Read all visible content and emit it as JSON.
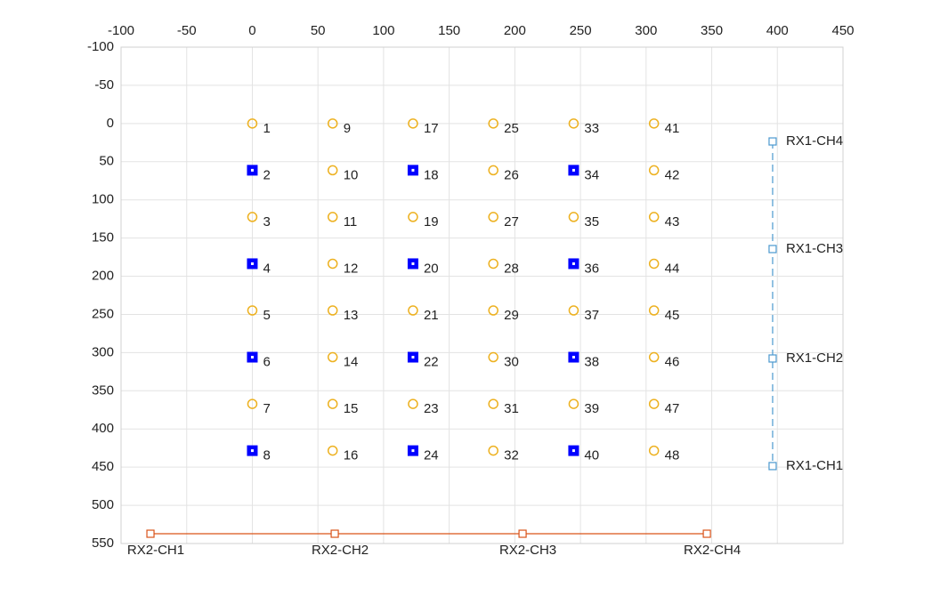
{
  "chart_data": {
    "type": "scatter",
    "xlim": [
      -100,
      450
    ],
    "xticks": [
      -100,
      -50,
      0,
      50,
      100,
      150,
      200,
      250,
      300,
      350,
      400,
      450
    ],
    "ylim": [
      -100,
      550
    ],
    "yticks": [
      -100,
      -50,
      0,
      50,
      100,
      150,
      200,
      250,
      300,
      350,
      400,
      450,
      500,
      550
    ],
    "y_reverse": true,
    "x_axis_location": "top",
    "grid": true,
    "series": [
      {
        "marker": "circle",
        "color": "#EDB120",
        "label_position": "right-below",
        "x": [
          0,
          0,
          0,
          0,
          61.2,
          61.2,
          61.2,
          61.2,
          61.2,
          61.2,
          61.2,
          61.2,
          122.4,
          122.4,
          122.4,
          122.4,
          183.6,
          183.6,
          183.6,
          183.6,
          183.6,
          183.6,
          183.6,
          183.6,
          244.8,
          244.8,
          244.8,
          244.8,
          306,
          306,
          306,
          306,
          306,
          306,
          306,
          306
        ],
        "y": [
          0,
          122.4,
          244.8,
          367.2,
          0,
          61.2,
          122.4,
          183.6,
          244.8,
          306,
          367.2,
          428.4,
          0,
          122.4,
          244.8,
          367.2,
          0,
          61.2,
          122.4,
          183.6,
          244.8,
          306,
          367.2,
          428.4,
          0,
          122.4,
          244.8,
          367.2,
          0,
          61.2,
          122.4,
          183.6,
          244.8,
          306,
          367.2,
          428.4
        ],
        "labels": [
          1,
          3,
          5,
          7,
          9,
          10,
          11,
          12,
          13,
          14,
          15,
          16,
          17,
          19,
          21,
          23,
          25,
          26,
          27,
          28,
          29,
          30,
          31,
          32,
          33,
          35,
          37,
          39,
          41,
          42,
          43,
          44,
          45,
          46,
          47,
          48
        ]
      },
      {
        "marker": "filled-square",
        "color": "#0000FF",
        "label_position": "right-below",
        "x": [
          0,
          0,
          0,
          0,
          122.4,
          122.4,
          122.4,
          122.4,
          244.8,
          244.8,
          244.8,
          244.8
        ],
        "y": [
          61.2,
          183.6,
          306,
          428.4,
          61.2,
          183.6,
          306,
          428.4,
          61.2,
          183.6,
          306,
          428.4
        ],
        "labels": [
          2,
          4,
          6,
          8,
          18,
          20,
          22,
          24,
          34,
          36,
          38,
          40
        ]
      },
      {
        "marker": "square",
        "line": "dashed",
        "color": "#4A98CF",
        "label_position": "right",
        "x": [
          396.4,
          396.4,
          396.4,
          396.4
        ],
        "y": [
          23.5,
          164.4,
          307.7,
          448.6
        ],
        "labels": [
          "RX1-CH4",
          "RX1-CH3",
          "RX1-CH2",
          "RX1-CH1"
        ]
      },
      {
        "marker": "square",
        "line": "solid",
        "color": "#D95319",
        "label_position": "below",
        "x": [
          -77.6,
          62.8,
          205.9,
          346.3
        ],
        "y": [
          537.2,
          537.2,
          537.2,
          537.2
        ],
        "labels": [
          "RX2-CH1",
          "RX2-CH2",
          "RX2-CH3",
          "RX2-CH4"
        ]
      }
    ]
  }
}
